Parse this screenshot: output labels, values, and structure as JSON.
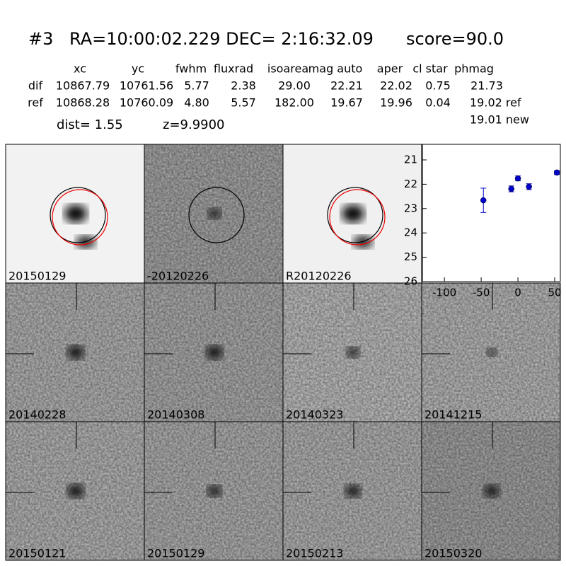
{
  "header": {
    "id": "#3",
    "coords": "RA=10:00:02.229 DEC= 2:16:32.09",
    "score": "score=90.0"
  },
  "table": {
    "columns": [
      "xc",
      "yc",
      "fwhm",
      "fluxrad",
      "isoarea",
      "mag auto",
      "aper",
      "cl star",
      "phmag"
    ],
    "rows": [
      [
        "dif",
        "10867.79",
        "10761.56",
        "5.77",
        "2.38",
        "29.00",
        "22.21",
        "22.02",
        "0.75",
        "21.73"
      ],
      [
        "ref",
        "10868.28",
        "10760.09",
        "4.80",
        "5.57",
        "182.00",
        "19.67",
        "19.96",
        "0.04",
        "19.02 ref"
      ]
    ],
    "extra": "19.01 new"
  },
  "dist": "dist=  1.55",
  "z": "z=9.9900",
  "panels": [
    "20150129",
    "-20120226",
    "R20120226",
    "20140228",
    "20140308",
    "20140323",
    "20141215",
    "20150121",
    "20150129",
    "20150213",
    "20150320"
  ],
  "highlight_panel": 8,
  "highlight_color": "#ff0000",
  "chart_data": {
    "type": "errorbar",
    "series": [
      {
        "color": "#0000cc",
        "x": [
          -47,
          -9,
          0,
          15,
          53
        ],
        "values": [
          22.66,
          22.19,
          21.76,
          22.1,
          21.52
        ],
        "errors": [
          0.5,
          0.12,
          0.1,
          0.12,
          0.08
        ]
      }
    ],
    "xlim": [
      -130,
      57.7
    ],
    "xticks": [
      -100,
      -50,
      0,
      50
    ],
    "ylim": [
      20.36,
      26
    ],
    "yticks": [
      21,
      22,
      23,
      24,
      25,
      26
    ],
    "y_inverted": true
  }
}
